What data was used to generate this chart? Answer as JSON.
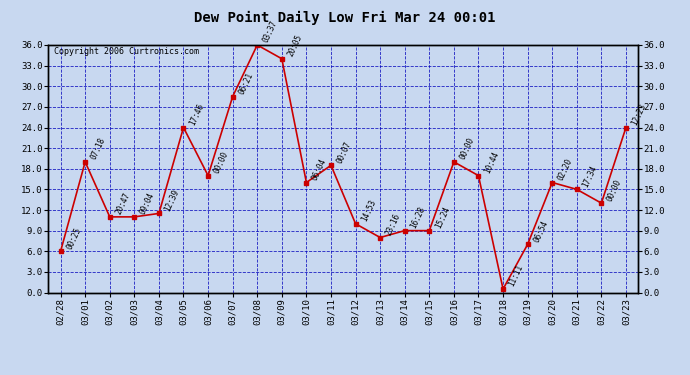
{
  "title": "Dew Point Daily Low Fri Mar 24 00:01",
  "copyright": "Copyright 2006 Curtronics.com",
  "x_labels": [
    "02/28",
    "03/01",
    "03/02",
    "03/03",
    "03/04",
    "03/05",
    "03/06",
    "03/07",
    "03/08",
    "03/09",
    "03/10",
    "03/11",
    "03/12",
    "03/13",
    "03/14",
    "03/15",
    "03/16",
    "03/17",
    "03/18",
    "03/19",
    "03/20",
    "03/21",
    "03/22",
    "03/23"
  ],
  "y_values": [
    6.0,
    19.0,
    11.0,
    11.0,
    11.5,
    24.0,
    17.0,
    28.5,
    36.0,
    34.0,
    16.0,
    18.5,
    10.0,
    8.0,
    9.0,
    9.0,
    19.0,
    17.0,
    0.5,
    7.0,
    16.0,
    15.0,
    13.0,
    24.0
  ],
  "point_labels": [
    "00:25",
    "07:18",
    "20:47",
    "09:04",
    "12:39",
    "17:46",
    "00:00",
    "06:21",
    "03:37",
    "20:05",
    "06:04",
    "00:07",
    "14:53",
    "23:16",
    "16:28",
    "15:24",
    "00:00",
    "10:44",
    "11:11",
    "06:54",
    "02:20",
    "17:34",
    "00:00",
    "12:23"
  ],
  "ylim": [
    0.0,
    36.0
  ],
  "yticks": [
    0.0,
    3.0,
    6.0,
    9.0,
    12.0,
    15.0,
    18.0,
    21.0,
    24.0,
    27.0,
    30.0,
    33.0,
    36.0
  ],
  "line_color": "#cc0000",
  "marker_color": "#cc0000",
  "bg_color": "#c8d8f0",
  "plot_bg_color": "#c8d8f0",
  "grid_color": "#0000bb",
  "label_color": "#000000",
  "title_color": "#000000",
  "border_color": "#000000",
  "figwidth": 6.9,
  "figheight": 3.75,
  "dpi": 100
}
